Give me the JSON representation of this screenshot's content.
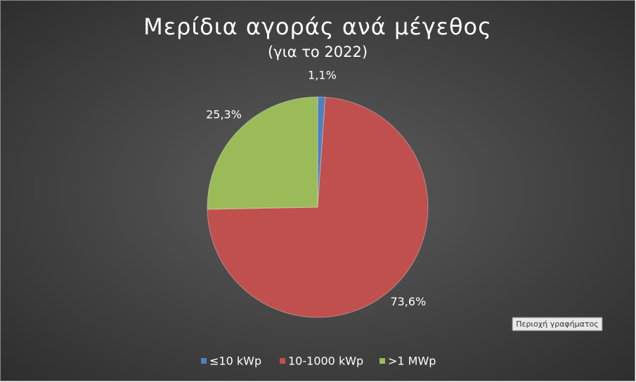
{
  "chart_data": {
    "type": "pie",
    "title": "Μερίδια αγοράς ανά μέγεθος",
    "subtitle": "(για το 2022)",
    "categories": [
      "≤10 kWp",
      "10-1000 kWp",
      ">1 MWp"
    ],
    "values": [
      1.1,
      73.6,
      25.3
    ],
    "value_labels": [
      "1,1%",
      "73,6%",
      "25,3%"
    ],
    "colors": [
      "#4f81bd",
      "#c0504d",
      "#9bbb59"
    ],
    "legend": "bottom",
    "tooltip": "Περιοχή γραφήματος"
  }
}
